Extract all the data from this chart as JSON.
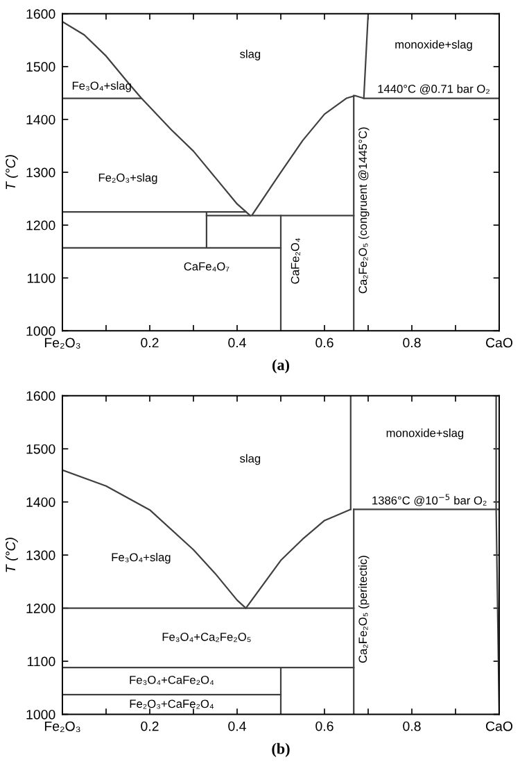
{
  "chart_data": [
    {
      "type": "line",
      "title": "(a)",
      "ylabel": "T (°C)",
      "xlim": [
        0,
        1
      ],
      "ylim": [
        1000,
        1600
      ],
      "xticks": [
        {
          "value": 0,
          "label": "Fe₂O₃"
        },
        {
          "value": 0.1,
          "label": null
        },
        0.2,
        {
          "value": 0.3,
          "label": null
        },
        0.4,
        {
          "value": 0.5,
          "label": null
        },
        0.6,
        {
          "value": 0.7,
          "label": null
        },
        0.8,
        {
          "value": 0.9,
          "label": null
        },
        {
          "value": 1,
          "label": "CaO"
        }
      ],
      "yticks": [
        1000,
        1100,
        1200,
        1300,
        1400,
        1500,
        1600
      ],
      "grid": false,
      "legend": false,
      "marker": "none",
      "line_style": "solid",
      "series": [
        {
          "color": "#404040",
          "x": [
            0,
            0.05,
            0.1,
            0.15,
            0.18,
            0.25,
            0.3,
            0.35,
            0.4,
            0.43
          ],
          "values": [
            1585,
            1560,
            1520,
            1470,
            1441,
            1380,
            1340,
            1290,
            1240,
            1218
          ]
        },
        {
          "color": "#404040",
          "x": [
            0.435,
            0.5,
            0.55,
            0.6,
            0.65,
            0.67,
            0.69,
            1
          ],
          "values": [
            1220,
            1300,
            1360,
            1410,
            1440,
            1445,
            1440,
            1440
          ]
        },
        {
          "color": "#404040",
          "x": [
            0.667,
            0.667
          ],
          "values": [
            1000,
            1445
          ]
        },
        {
          "color": "#404040",
          "x": [
            0.69,
            0.7
          ],
          "values": [
            1440,
            1600
          ]
        },
        {
          "color": "#404040",
          "x": [
            0,
            0.18
          ],
          "values": [
            1440,
            1440
          ]
        },
        {
          "color": "#404040",
          "x": [
            0,
            0.42
          ],
          "values": [
            1225,
            1225
          ]
        },
        {
          "color": "#404040",
          "x": [
            0.33,
            0.667
          ],
          "values": [
            1218,
            1218
          ]
        },
        {
          "color": "#404040",
          "x": [
            0.33,
            0.33
          ],
          "values": [
            1157,
            1225
          ]
        },
        {
          "color": "#404040",
          "x": [
            0,
            0.5
          ],
          "values": [
            1157,
            1157
          ]
        },
        {
          "color": "#404040",
          "x": [
            0.5,
            0.5
          ],
          "values": [
            1000,
            1218
          ]
        }
      ],
      "annotations": [
        "slag",
        "monoxide+slag",
        "Fe₃O₄+slag",
        "1440°C @0.71 bar O₂",
        "Fe₂O₃+slag",
        "CaFe₄O₇",
        "CaFe₂O₄",
        "Ca₂Fe₂O₅ (congruent @1445°C)"
      ]
    },
    {
      "type": "line",
      "title": "(b)",
      "ylabel": "T (°C)",
      "xlim": [
        0,
        1
      ],
      "ylim": [
        1000,
        1600
      ],
      "xticks": [
        {
          "value": 0,
          "label": "Fe₂O₃"
        },
        {
          "value": 0.1,
          "label": null
        },
        0.2,
        {
          "value": 0.3,
          "label": null
        },
        0.4,
        {
          "value": 0.5,
          "label": null
        },
        0.6,
        {
          "value": 0.7,
          "label": null
        },
        0.8,
        {
          "value": 0.9,
          "label": null
        },
        {
          "value": 1,
          "label": "CaO"
        }
      ],
      "yticks": [
        1000,
        1100,
        1200,
        1300,
        1400,
        1500,
        1600
      ],
      "grid": false,
      "legend": false,
      "marker": "none",
      "line_style": "solid",
      "series": [
        {
          "color": "#404040",
          "x": [
            0,
            0.1,
            0.2,
            0.3,
            0.35,
            0.4,
            0.42
          ],
          "values": [
            1460,
            1430,
            1385,
            1310,
            1265,
            1215,
            1200
          ]
        },
        {
          "color": "#404040",
          "x": [
            0.42,
            0.5,
            0.55,
            0.6,
            0.66
          ],
          "values": [
            1200,
            1290,
            1330,
            1365,
            1386
          ]
        },
        {
          "color": "#404040",
          "x": [
            0.66,
            0.66
          ],
          "values": [
            1386,
            1600
          ]
        },
        {
          "color": "#404040",
          "x": [
            0.667,
            0.667
          ],
          "values": [
            1000,
            1386
          ]
        },
        {
          "color": "#404040",
          "x": [
            0.667,
            1
          ],
          "values": [
            1386,
            1386
          ]
        },
        {
          "color": "#404040",
          "x": [
            0,
            0.667
          ],
          "values": [
            1200,
            1200
          ]
        },
        {
          "color": "#404040",
          "x": [
            0,
            0.667
          ],
          "values": [
            1088,
            1088
          ]
        },
        {
          "color": "#404040",
          "x": [
            0,
            0.5
          ],
          "values": [
            1037,
            1037
          ]
        },
        {
          "color": "#404040",
          "x": [
            0.5,
            0.5
          ],
          "values": [
            1000,
            1088
          ]
        },
        {
          "color": "#404040",
          "x": [
            0.993,
            0.993,
            1
          ],
          "values": [
            1600,
            1386,
            1000
          ]
        }
      ],
      "annotations": [
        "slag",
        "monoxide+slag",
        "1386°C @10$^{−5}$ bar O₂",
        "Fe₃O₄+slag",
        "Fe₃O₄+Ca₂Fe₂O₅",
        "Ca₂Fe₂O₅ (peritectic)",
        "Fe₃O₄+CaFe₂O₄",
        "Fe₂O₃+CaFe₂O₄"
      ]
    }
  ]
}
